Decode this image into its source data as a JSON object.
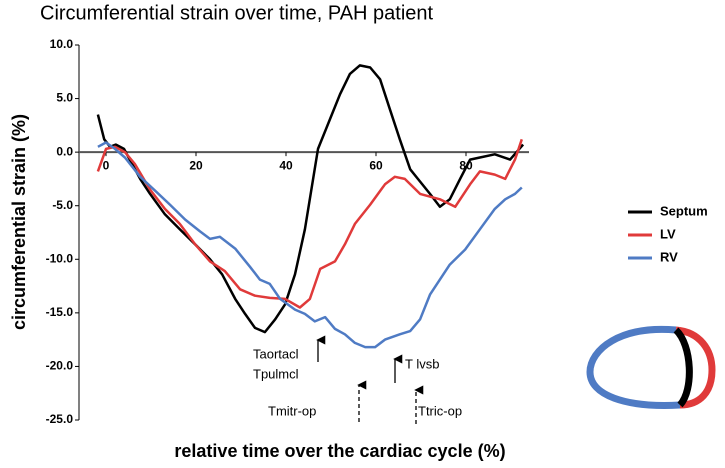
{
  "chart_data": {
    "type": "line",
    "title": "Circumferential strain over time, PAH patient",
    "x_label": "relative time over the cardiac cycle (%)",
    "y_label": "circumferential strain (%)",
    "xlim": [
      -6,
      94
    ],
    "xticks": [
      0,
      20,
      40,
      60,
      80
    ],
    "ylim": [
      -25,
      10
    ],
    "yticks": [
      {
        "value": 10,
        "label": "10.0"
      },
      {
        "value": 5,
        "label": "5.0"
      },
      {
        "value": 0,
        "label": "0.0"
      },
      {
        "value": -5,
        "label": "-5.0"
      },
      {
        "value": -10,
        "label": "-10.0"
      },
      {
        "value": -15,
        "label": "-15.0"
      },
      {
        "value": -20,
        "label": "-20.0"
      },
      {
        "value": -25,
        "label": "-25.0"
      }
    ],
    "grid": false,
    "legend": "right",
    "series": [
      {
        "name": "Septum",
        "color": "#000000",
        "x": [
          -1.8,
          -0.4,
          0.9,
          2.2,
          4,
          5.8,
          7.6,
          9.8,
          13.1,
          16.4,
          19.8,
          23.1,
          25.8,
          28.7,
          30.9,
          33.1,
          35.3,
          37.6,
          39.8,
          42,
          44.2,
          47.1,
          49.8,
          52,
          54.2,
          56.4,
          58.7,
          60.9,
          63.1,
          65.3,
          67.6,
          69.3,
          72,
          74.2,
          76.4,
          78.7,
          80.9,
          83.1,
          86.4,
          89.8,
          92.7
        ],
        "values": [
          3.5,
          1.2,
          0.5,
          0.7,
          0.3,
          -1.1,
          -2.5,
          -3.9,
          -5.8,
          -7.2,
          -8.6,
          -10,
          -11.4,
          -13.7,
          -15.1,
          -16.4,
          -16.8,
          -15.6,
          -14.2,
          -11.4,
          -7.2,
          0.3,
          3.1,
          5.4,
          7.3,
          8.1,
          7.9,
          6.8,
          4,
          1.2,
          -1.6,
          -2.5,
          -3.9,
          -5.1,
          -4.4,
          -2.5,
          -0.7,
          -0.5,
          -0.2,
          -0.7,
          0.7
        ]
      },
      {
        "name": "LV",
        "color": "#e03a3a",
        "x": [
          -1.8,
          0,
          2,
          4.2,
          6.4,
          9.8,
          13.1,
          16.4,
          19.8,
          23.1,
          26.4,
          29.8,
          33.1,
          36.4,
          39.8,
          43.1,
          45.3,
          47.6,
          50.9,
          53.1,
          55.3,
          58.7,
          62,
          64.2,
          66.4,
          69.8,
          74.2,
          77.6,
          80.9,
          83.1,
          86.4,
          88.7,
          90.9,
          92.4
        ],
        "values": [
          -1.8,
          0.3,
          0.5,
          0,
          -1.1,
          -3.5,
          -5.3,
          -6.7,
          -8.6,
          -10.2,
          -11.1,
          -12.8,
          -13.4,
          -13.6,
          -13.7,
          -14.5,
          -13.7,
          -10.9,
          -10.2,
          -8.6,
          -6.7,
          -4.9,
          -3,
          -2.3,
          -2.5,
          -3.9,
          -4.4,
          -5.1,
          -3,
          -1.8,
          -2.1,
          -2.5,
          -0.7,
          1.2
        ]
      },
      {
        "name": "RV",
        "color": "#4f7bc4",
        "x": [
          -1.8,
          0,
          2,
          4.2,
          7.6,
          10.9,
          14.2,
          17.6,
          20.9,
          23.1,
          25.3,
          28.7,
          32,
          34.2,
          36.4,
          38.7,
          42,
          44.2,
          46.4,
          48.7,
          50.9,
          53.1,
          55.3,
          57.6,
          59.8,
          62,
          65.3,
          67.6,
          69.8,
          72,
          74.2,
          76.4,
          79.8,
          83.1,
          86.4,
          88.7,
          90.9,
          92.4
        ],
        "values": [
          0.5,
          0.9,
          0.3,
          -0.5,
          -2.3,
          -3.6,
          -4.9,
          -6.3,
          -7.4,
          -8.1,
          -7.9,
          -9,
          -10.7,
          -11.9,
          -12.3,
          -13.7,
          -14.7,
          -15.1,
          -15.8,
          -15.4,
          -16.5,
          -17,
          -17.8,
          -18.2,
          -18.2,
          -17.5,
          -17,
          -16.7,
          -15.6,
          -13.3,
          -11.9,
          -10.5,
          -9.1,
          -7.2,
          -5.3,
          -4.4,
          -3.9,
          -3.3
        ]
      }
    ],
    "annotations": [
      "Taortacl",
      "Tpulmcl",
      "T lvsb",
      "Tmitr-op",
      "Ttric-op"
    ]
  }
}
